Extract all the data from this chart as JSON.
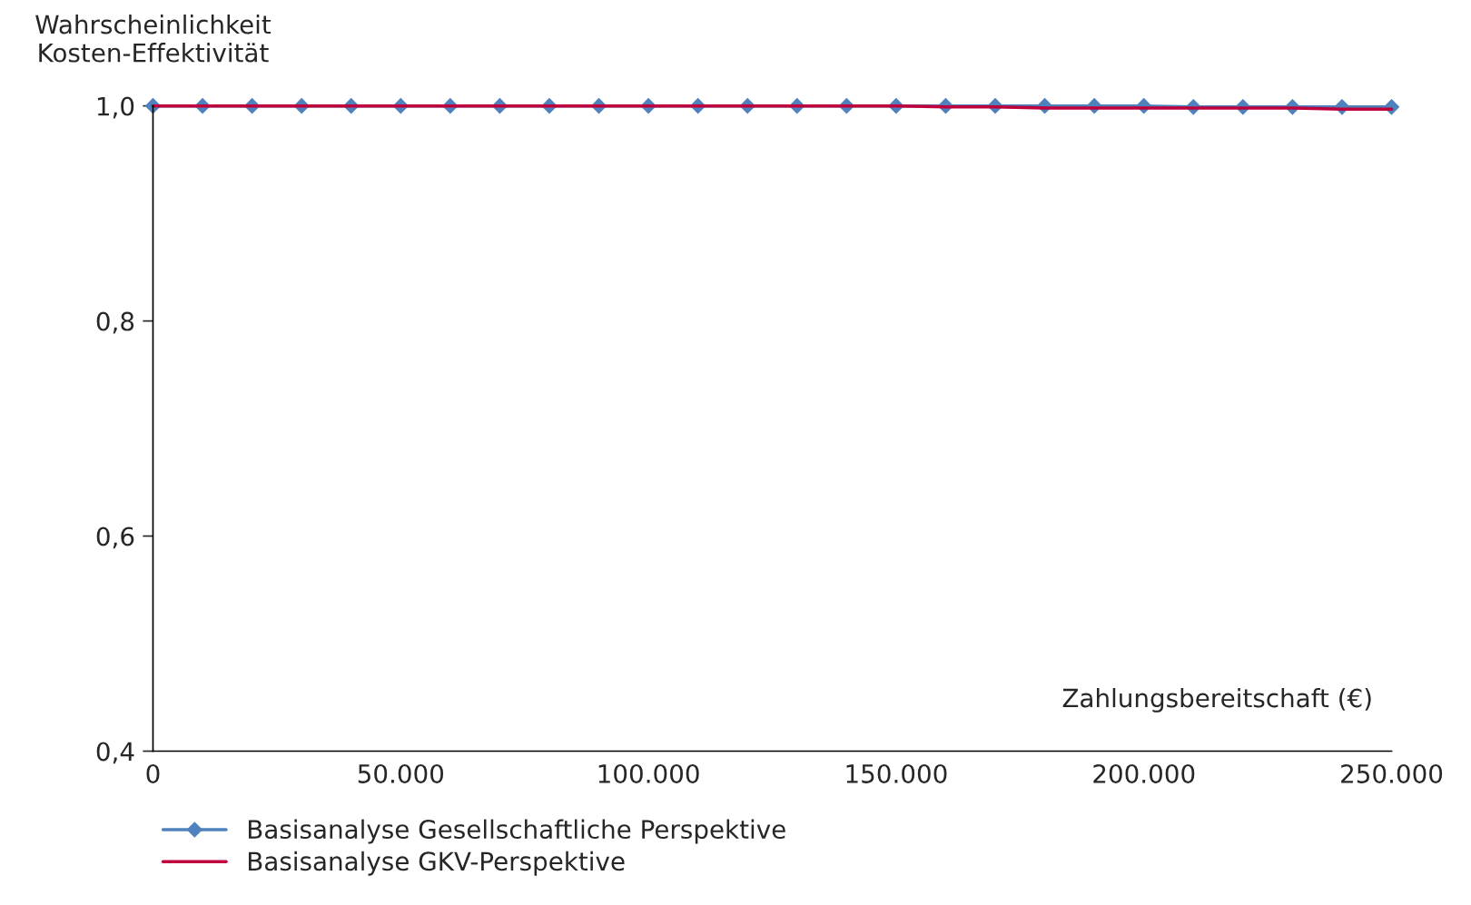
{
  "chart_data": {
    "type": "line",
    "ylabel": "Wahrscheinlichkeit\nKosten-Effektivität",
    "xlabel": "Zahlungsbereitschaft (€)",
    "x": [
      0,
      10000,
      20000,
      30000,
      40000,
      50000,
      60000,
      70000,
      80000,
      90000,
      100000,
      110000,
      120000,
      130000,
      140000,
      150000,
      160000,
      170000,
      180000,
      190000,
      200000,
      210000,
      220000,
      230000,
      240000,
      250000
    ],
    "series": [
      {
        "name": "Basisanalyse Gesellschaftliche Perspektive",
        "color": "#4f81bd",
        "marker": "diamond",
        "values": [
          1,
          1,
          1,
          1,
          1,
          1,
          1,
          1,
          1,
          1,
          1,
          1,
          1,
          1,
          1,
          1,
          1,
          1,
          1,
          1,
          1,
          0.999,
          0.999,
          0.999,
          0.999,
          0.999
        ]
      },
      {
        "name": "Basisanalyse GKV-Perspektive",
        "color": "#c0003c",
        "marker": "none",
        "values": [
          1,
          1,
          1,
          1,
          1,
          1,
          1,
          1,
          1,
          1,
          1,
          1,
          1,
          1,
          1,
          1,
          0.999,
          0.999,
          0.998,
          0.998,
          0.998,
          0.998,
          0.998,
          0.998,
          0.997,
          0.997
        ]
      }
    ],
    "xlim": [
      0,
      250000
    ],
    "xticks": [
      {
        "value": 0,
        "label": "0"
      },
      {
        "value": 50000,
        "label": "50.000"
      },
      {
        "value": 100000,
        "label": "100.000"
      },
      {
        "value": 150000,
        "label": "150.000"
      },
      {
        "value": 200000,
        "label": "200.000"
      },
      {
        "value": 250000,
        "label": "250.000"
      }
    ],
    "ylim": [
      0.4,
      1.0
    ],
    "yticks": [
      {
        "value": 0.4,
        "label": "0,4"
      },
      {
        "value": 0.6,
        "label": "0,6"
      },
      {
        "value": 0.8,
        "label": "0,8"
      },
      {
        "value": 1.0,
        "label": "1,0"
      }
    ],
    "grid": false,
    "legend": "bottom"
  }
}
